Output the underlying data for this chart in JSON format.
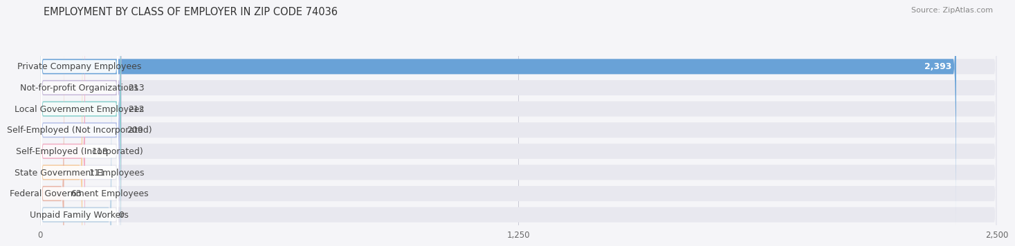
{
  "title": "EMPLOYMENT BY CLASS OF EMPLOYER IN ZIP CODE 74036",
  "source": "Source: ZipAtlas.com",
  "categories": [
    "Private Company Employees",
    "Not-for-profit Organizations",
    "Local Government Employees",
    "Self-Employed (Not Incorporated)",
    "Self-Employed (Incorporated)",
    "State Government Employees",
    "Federal Government Employees",
    "Unpaid Family Workers"
  ],
  "values": [
    2393,
    213,
    212,
    209,
    118,
    111,
    63,
    0
  ],
  "bar_colors": [
    "#5b9bd5",
    "#c4b5d8",
    "#7ecfca",
    "#b0bce8",
    "#f4a8c0",
    "#f9cc99",
    "#e8b0a0",
    "#a8c8e0"
  ],
  "row_bg_color": "#e8e8ef",
  "bar_bg_color": "#f0f0f5",
  "xlim": [
    0,
    2500
  ],
  "xticks": [
    0,
    1250,
    2500
  ],
  "xtick_labels": [
    "0",
    "1,250",
    "2,500"
  ],
  "background_color": "#f5f5f8",
  "title_fontsize": 10.5,
  "source_fontsize": 8,
  "label_fontsize": 9,
  "value_fontsize": 9,
  "grid_color": "#c8c8d4"
}
